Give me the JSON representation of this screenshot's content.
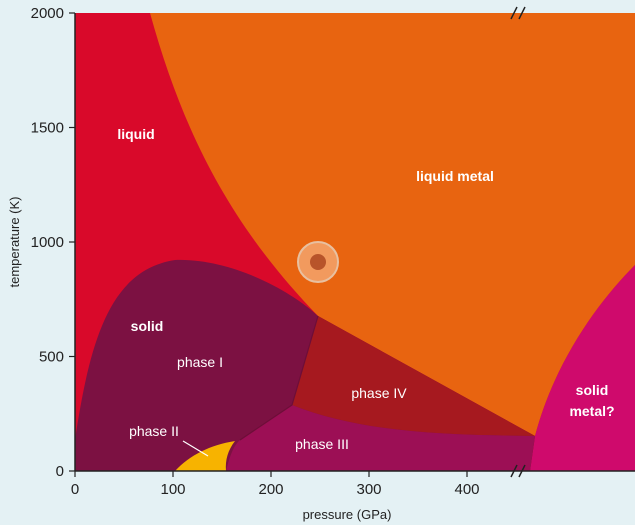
{
  "chart_data": {
    "type": "phase-diagram",
    "title": "",
    "xlabel": "pressure (GPa)",
    "ylabel": "temperature (K)",
    "xlim": [
      0,
      560
    ],
    "ylim": [
      0,
      2000
    ],
    "x_ticks": [
      "0",
      "100",
      "200",
      "300",
      "400"
    ],
    "y_ticks": [
      "0",
      "500",
      "1000",
      "1500",
      "2000"
    ],
    "axis_break": true,
    "regions": [
      {
        "id": "liquid",
        "label": "liquid",
        "color": "#d9092a"
      },
      {
        "id": "liquid-metal",
        "label": "liquid metal",
        "color": "#e86410"
      },
      {
        "id": "solid",
        "label": "solid",
        "color": "#7c1142"
      },
      {
        "id": "phase-1",
        "label": "phase I",
        "color": "#7c1142"
      },
      {
        "id": "phase-2",
        "label": "phase II",
        "color": "#f7b300"
      },
      {
        "id": "phase-3",
        "label": "phase III",
        "color": "#9c0f55"
      },
      {
        "id": "phase-4",
        "label": "phase IV",
        "color": "#a6191f"
      },
      {
        "id": "solid-metal",
        "label": "solid metal?",
        "label_lines": [
          "solid",
          "metal?"
        ],
        "color": "#cf0a6c"
      }
    ],
    "annotations": [
      {
        "type": "circle-marker",
        "x": 247,
        "y": 910,
        "fill": "#f29a5e",
        "ring": "#e8c0a0",
        "dot": "#b8542a"
      }
    ]
  }
}
